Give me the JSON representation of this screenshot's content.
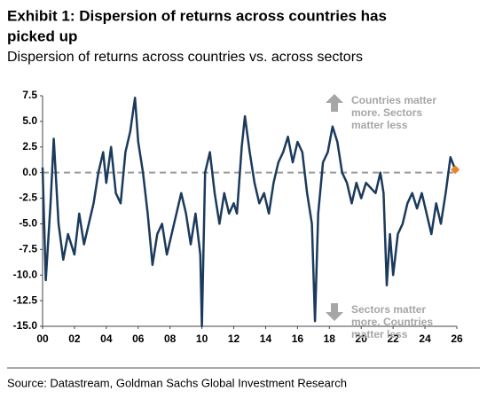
{
  "chart_data": {
    "type": "line",
    "title": [
      "Exhibit 1: Dispersion of returns across countries has",
      "picked up"
    ],
    "subtitle": "Dispersion of returns across countries vs. across sectors",
    "source": "Source: Datastream, Goldman Sachs Global Investment Research",
    "annotations": [
      {
        "lines": [
          "Countries matter",
          "more. Sectors",
          "matter less"
        ],
        "direction": "up"
      },
      {
        "lines": [
          "Sectors matter",
          "more. Countries",
          "matter less"
        ],
        "direction": "down"
      }
    ],
    "x": [
      2000.0,
      2000.2,
      2000.5,
      2000.7,
      2001.0,
      2001.3,
      2001.6,
      2002.0,
      2002.3,
      2002.6,
      2002.9,
      2003.2,
      2003.5,
      2003.8,
      2004.0,
      2004.3,
      2004.6,
      2004.9,
      2005.2,
      2005.5,
      2005.8,
      2006.0,
      2006.3,
      2006.6,
      2006.9,
      2007.2,
      2007.5,
      2007.8,
      2008.1,
      2008.4,
      2008.7,
      2009.0,
      2009.3,
      2009.6,
      2009.9,
      2010.0,
      2010.2,
      2010.5,
      2010.8,
      2011.1,
      2011.4,
      2011.7,
      2012.0,
      2012.2,
      2012.5,
      2012.7,
      2013.0,
      2013.3,
      2013.6,
      2013.9,
      2014.2,
      2014.5,
      2014.8,
      2015.1,
      2015.4,
      2015.7,
      2016.0,
      2016.3,
      2016.6,
      2016.9,
      2017.1,
      2017.3,
      2017.6,
      2017.9,
      2018.2,
      2018.5,
      2018.8,
      2019.1,
      2019.4,
      2019.7,
      2020.0,
      2020.3,
      2020.6,
      2020.9,
      2021.2,
      2021.4,
      2021.6,
      2021.8,
      2022.0,
      2022.3,
      2022.6,
      2022.9,
      2023.2,
      2023.5,
      2023.8,
      2024.1,
      2024.4,
      2024.7,
      2025.0,
      2025.3,
      2025.6,
      2025.9
    ],
    "series": [
      {
        "color": "#1b3a5c",
        "values": [
          0.5,
          -10.5,
          -3,
          3.3,
          -5,
          -8.5,
          -6,
          -8,
          -4,
          -7,
          -5,
          -3,
          0,
          2,
          -1,
          2.5,
          -2,
          -3,
          2,
          4,
          7.3,
          3,
          0,
          -4,
          -9,
          -6,
          -5,
          -8,
          -6,
          -4,
          -2,
          -4,
          -7,
          -4,
          -8,
          -15,
          0,
          2,
          -2,
          -5,
          -2,
          -4,
          -3,
          -4,
          2.5,
          5.5,
          2,
          -1,
          -3,
          -2,
          -4,
          -1,
          1,
          2,
          3.5,
          1,
          3,
          2,
          -2,
          -5,
          -14.5,
          -4,
          1,
          2,
          4.5,
          3,
          0,
          -1,
          -3,
          -1,
          -2.5,
          -1,
          -1.5,
          -2,
          0,
          -2,
          -11,
          -6,
          -10,
          -6,
          -5,
          -3,
          -2,
          -3.5,
          -2,
          -4,
          -6,
          -3,
          -5,
          -2,
          1.5,
          0.3
        ]
      }
    ],
    "last_point_color": "#e8832a",
    "xlim": [
      2000,
      2026
    ],
    "xticks": [
      {
        "value": 2000,
        "label": "00"
      },
      {
        "value": 2002,
        "label": "02"
      },
      {
        "value": 2004,
        "label": "04"
      },
      {
        "value": 2006,
        "label": "06"
      },
      {
        "value": 2008,
        "label": "08"
      },
      {
        "value": 2010,
        "label": "10"
      },
      {
        "value": 2012,
        "label": "12"
      },
      {
        "value": 2014,
        "label": "14"
      },
      {
        "value": 2016,
        "label": "16"
      },
      {
        "value": 2018,
        "label": "18"
      },
      {
        "value": 2020,
        "label": "20"
      },
      {
        "value": 2022,
        "label": "22"
      },
      {
        "value": 2024,
        "label": "24"
      },
      {
        "value": 2026,
        "label": "26"
      }
    ],
    "ylim": [
      -15,
      7.5
    ],
    "yticks": [
      {
        "value": -15,
        "label": "-15.0"
      },
      {
        "value": -12.5,
        "label": "-12.5"
      },
      {
        "value": -10,
        "label": "-10.0"
      },
      {
        "value": -7.5,
        "label": "-7.5"
      },
      {
        "value": -5,
        "label": "-5.0"
      },
      {
        "value": -2.5,
        "label": "-2.5"
      },
      {
        "value": 0,
        "label": "0.0"
      },
      {
        "value": 2.5,
        "label": "2.5"
      },
      {
        "value": 5,
        "label": "5.0"
      },
      {
        "value": 7.5,
        "label": "7.5"
      }
    ],
    "zero_line": true
  }
}
